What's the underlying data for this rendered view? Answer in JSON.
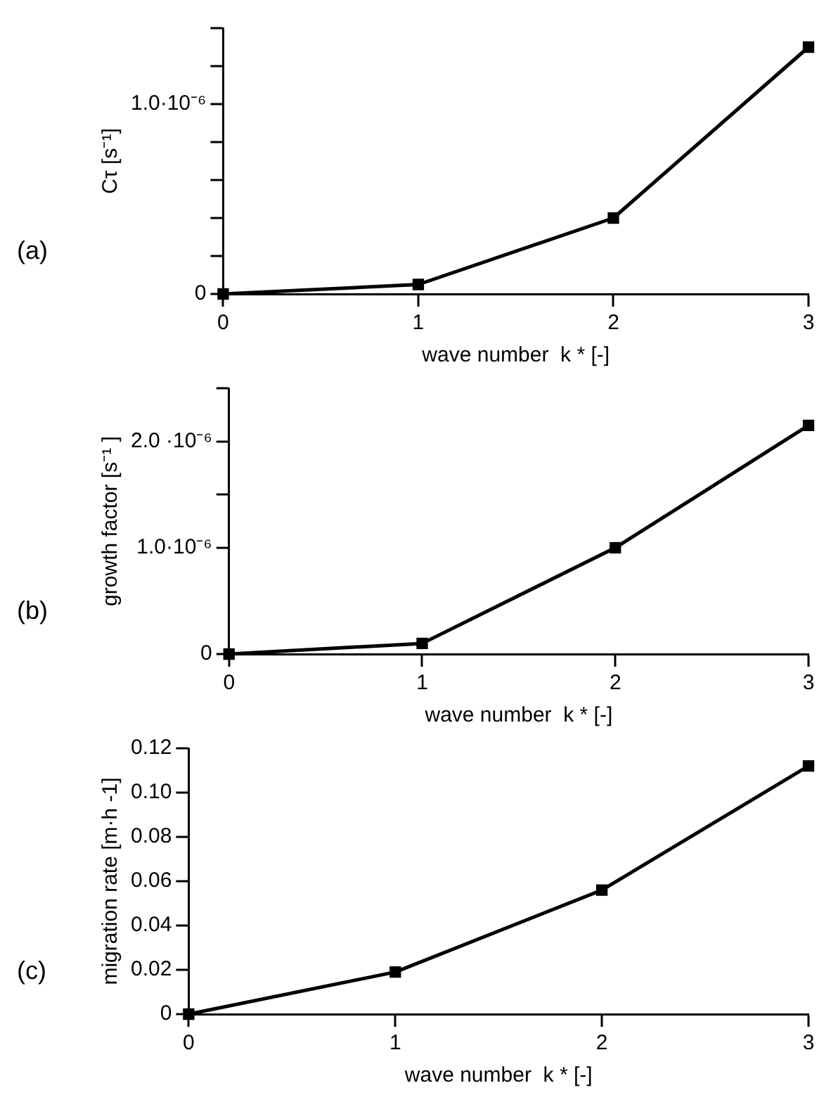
{
  "chart_data": [
    {
      "type": "line",
      "x": [
        0,
        1,
        2,
        3
      ],
      "values": [
        0,
        5e-08,
        4e-07,
        1.3e-06
      ],
      "color": "#000000",
      "xlabel": "wave number  k * [-]",
      "ylabel": "Cτ [s⁻¹]",
      "xlim": [
        0,
        3
      ],
      "xticks": [
        0,
        1,
        2,
        3
      ],
      "ylim": [
        0,
        1.4e-06
      ],
      "yticks": [
        {
          "value": 0,
          "label": "0"
        },
        {
          "value": 2e-07,
          "label": null
        },
        {
          "value": 4e-07,
          "label": null
        },
        {
          "value": 6e-07,
          "label": null
        },
        {
          "value": 8e-07,
          "label": null
        },
        {
          "value": 1e-06,
          "label": "1.0·10⁻⁶"
        },
        {
          "value": 1.2e-06,
          "label": null
        },
        {
          "value": 1.4e-06,
          "label": null
        }
      ],
      "marker": "square",
      "line_style": "solid",
      "grid": false,
      "legend": false,
      "annotations": [
        "(a)"
      ]
    },
    {
      "type": "line",
      "x": [
        0,
        1,
        2,
        3
      ],
      "values": [
        0,
        1e-07,
        1e-06,
        2.15e-06
      ],
      "color": "#000000",
      "xlabel": "wave number  k * [-]",
      "ylabel": "growth factor [s⁻¹ ]",
      "xlim": [
        0,
        3
      ],
      "xticks": [
        0,
        1,
        2,
        3
      ],
      "ylim": [
        0,
        2.5e-06
      ],
      "yticks": [
        {
          "value": 0,
          "label": "0"
        },
        {
          "value": 1e-06,
          "label": "1.0·10⁻⁶"
        },
        {
          "value": 1.5e-06,
          "label": null
        },
        {
          "value": 2e-06,
          "label": "2.0 ·10⁻⁶"
        },
        {
          "value": 2.5e-06,
          "label": null
        }
      ],
      "marker": "square",
      "line_style": "solid",
      "grid": false,
      "legend": false,
      "annotations": [
        "(b)"
      ]
    },
    {
      "type": "line",
      "x": [
        0,
        1,
        2,
        3
      ],
      "values": [
        0,
        0.019,
        0.056,
        0.112
      ],
      "color": "#000000",
      "xlabel": "wave number  k * [-]",
      "ylabel": "migration rate [m·h -1]",
      "xlim": [
        0,
        3
      ],
      "xticks": [
        0,
        1,
        2,
        3
      ],
      "ylim": [
        0,
        0.12
      ],
      "yticks": [
        {
          "value": 0,
          "label": "0"
        },
        {
          "value": 0.02,
          "label": "0.02"
        },
        {
          "value": 0.04,
          "label": "0.04"
        },
        {
          "value": 0.06,
          "label": "0.06"
        },
        {
          "value": 0.08,
          "label": "0.08"
        },
        {
          "value": 0.1,
          "label": "0.10"
        },
        {
          "value": 0.12,
          "label": "0.12"
        }
      ],
      "marker": "square",
      "line_style": "solid",
      "grid": false,
      "legend": false,
      "annotations": [
        "(c)"
      ]
    }
  ]
}
